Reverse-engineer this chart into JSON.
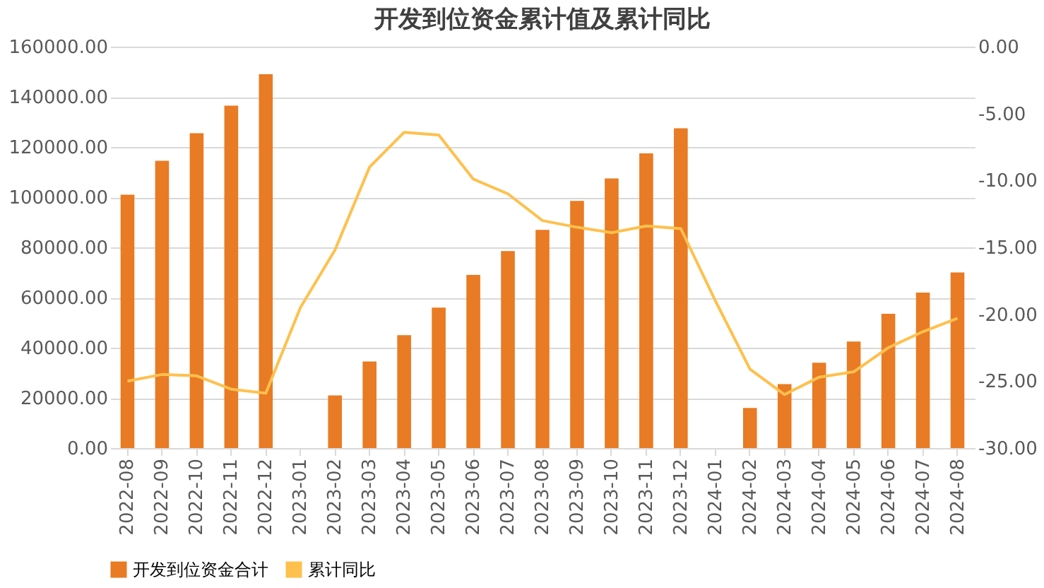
{
  "chart_data": {
    "type": "bar",
    "title": "开发到位资金累计值及累计同比",
    "categories": [
      "2022-08",
      "2022-09",
      "2022-10",
      "2022-11",
      "2022-12",
      "2023-01",
      "2023-02",
      "2023-03",
      "2023-04",
      "2023-05",
      "2023-06",
      "2023-07",
      "2023-08",
      "2023-09",
      "2023-10",
      "2023-11",
      "2023-12",
      "2024-01",
      "2024-02",
      "2024-03",
      "2024-04",
      "2024-05",
      "2024-06",
      "2024-07",
      "2024-08"
    ],
    "series": [
      {
        "name": "开发到位资金合计",
        "color": "#e87b24",
        "values": [
          101000,
          114500,
          125500,
          136500,
          149000,
          null,
          21000,
          34500,
          45000,
          56000,
          69000,
          78500,
          87000,
          98500,
          107500,
          117500,
          127500,
          null,
          16000,
          25500,
          34000,
          42500,
          53500,
          62000,
          70000
        ]
      },
      {
        "name": "累计同比",
        "type": "line",
        "axis": "y2",
        "color": "#ffc04d",
        "values": [
          -25.0,
          -24.5,
          -24.6,
          -25.6,
          -25.9,
          -19.5,
          -15.2,
          -9.0,
          -6.4,
          -6.6,
          -9.9,
          -11.0,
          -13.0,
          -13.5,
          -13.9,
          -13.4,
          -13.6,
          -19.0,
          -24.1,
          -26.0,
          -24.7,
          -24.3,
          -22.5,
          -21.3,
          -20.3
        ]
      }
    ],
    "ylim": [
      0,
      160000
    ],
    "yticks": [
      {
        "value": 0,
        "label": "0.00"
      },
      {
        "value": 20000,
        "label": "20000.00"
      },
      {
        "value": 40000,
        "label": "40000.00"
      },
      {
        "value": 60000,
        "label": "60000.00"
      },
      {
        "value": 80000,
        "label": "80000.00"
      },
      {
        "value": 100000,
        "label": "100000.00"
      },
      {
        "value": 120000,
        "label": "120000.00"
      },
      {
        "value": 140000,
        "label": "140000.00"
      },
      {
        "value": 160000,
        "label": "160000.00"
      }
    ],
    "y2lim": [
      -30,
      0
    ],
    "y2ticks": [
      {
        "value": 0,
        "label": "0.00"
      },
      {
        "value": -5,
        "label": "-5.00"
      },
      {
        "value": -10,
        "label": "-10.00"
      },
      {
        "value": -15,
        "label": "-15.00"
      },
      {
        "value": -20,
        "label": "-20.00"
      },
      {
        "value": -25,
        "label": "-25.00"
      },
      {
        "value": -30,
        "label": "-30.00"
      }
    ],
    "grid": "y",
    "legend": "bottom",
    "marker": "none",
    "line_style": "solid"
  }
}
